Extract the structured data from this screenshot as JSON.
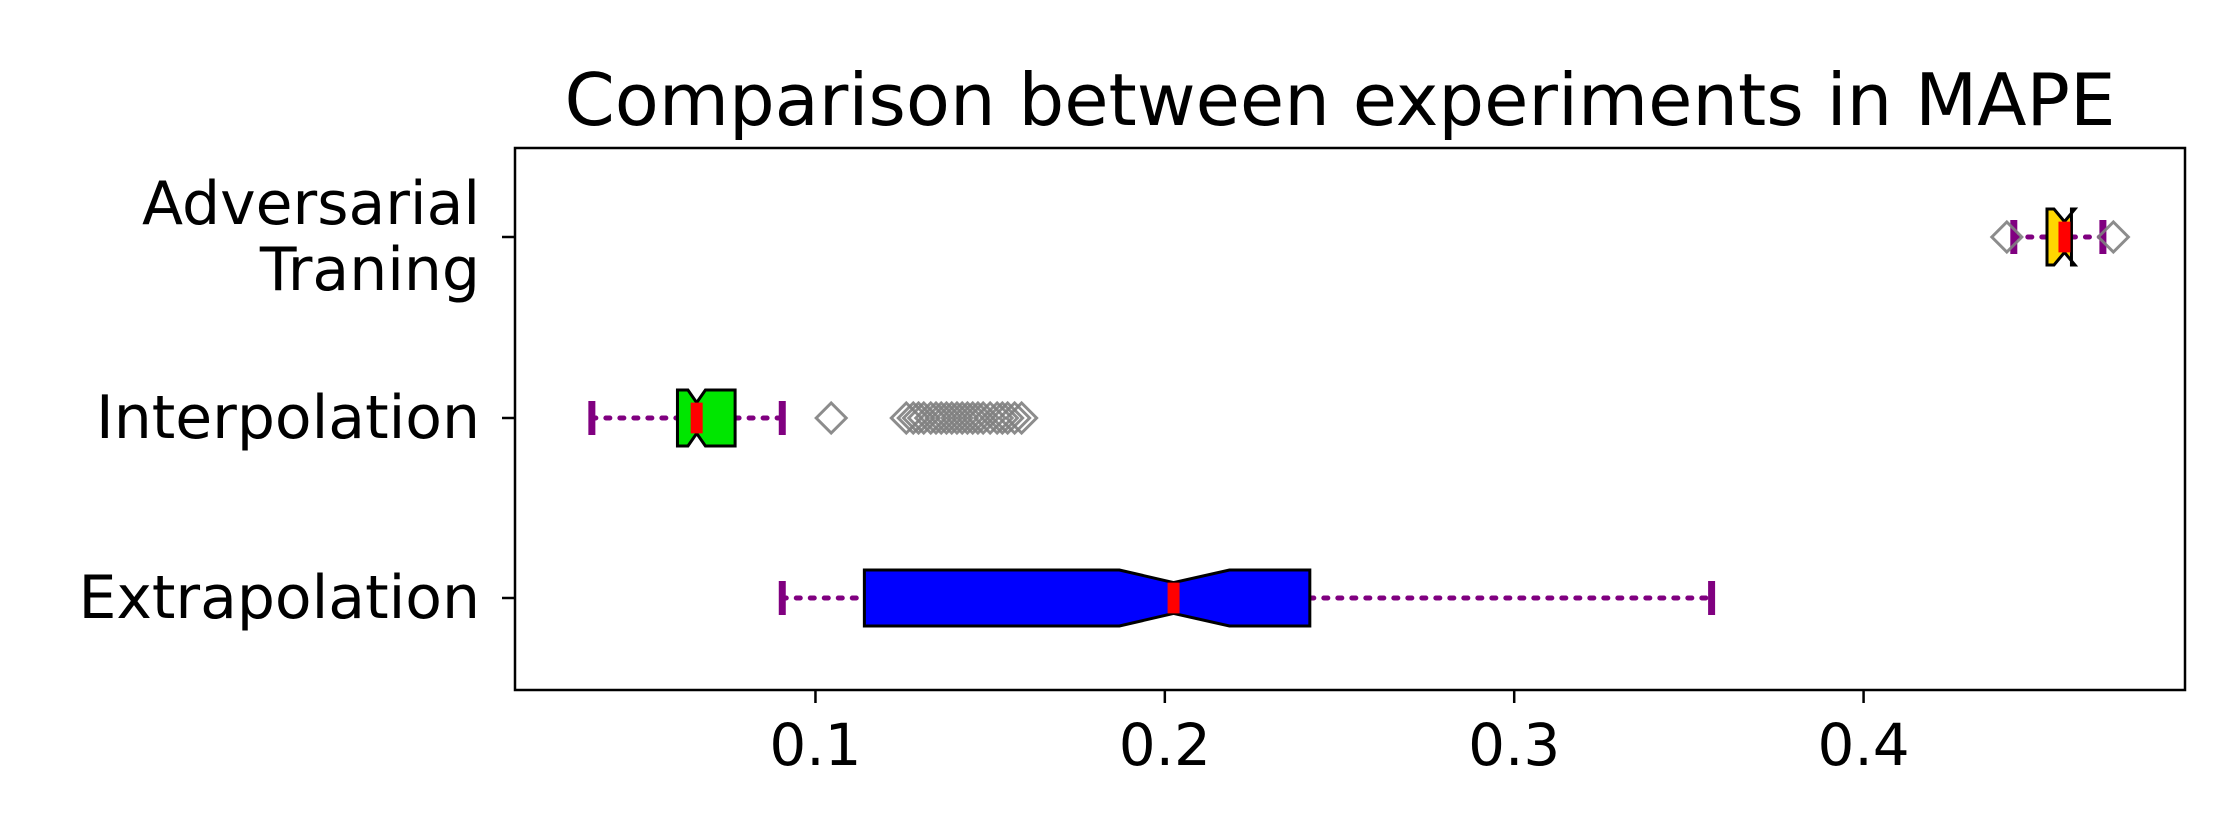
{
  "chart_data": {
    "type": "boxplot",
    "orientation": "horizontal",
    "title": "Comparison between experiments in MAPE",
    "xlabel": "",
    "ylabel": "",
    "xlim": [
      0.014,
      0.492
    ],
    "xticks": [
      0.1,
      0.2,
      0.3,
      0.4
    ],
    "xtick_labels": [
      "0.1",
      "0.2",
      "0.3",
      "0.4"
    ],
    "grid": false,
    "notched": true,
    "categories": [
      {
        "label_lines": [
          "Adversarial",
          "Traning"
        ]
      },
      {
        "label_lines": [
          "Interpolation"
        ]
      },
      {
        "label_lines": [
          "Extrapolation"
        ]
      }
    ],
    "boxes": [
      {
        "whisker_low": 0.443,
        "q1": 0.4525,
        "median": 0.4575,
        "q3": 0.4595,
        "whisker_high": 0.4685,
        "notch_low": 0.4545,
        "notch_high": 0.4605,
        "fill": "#ffd700",
        "outliers": [
          0.441,
          0.4715
        ]
      },
      {
        "whisker_low": 0.036,
        "q1": 0.0605,
        "median": 0.066,
        "q3": 0.077,
        "whisker_high": 0.0905,
        "notch_low": 0.0635,
        "notch_high": 0.0685,
        "fill": "#00e600",
        "outliers": [
          0.1045,
          0.126,
          0.128,
          0.1295,
          0.131,
          0.133,
          0.1345,
          0.136,
          0.1375,
          0.139,
          0.1405,
          0.142,
          0.1435,
          0.145,
          0.1465,
          0.148,
          0.15,
          0.152,
          0.1535,
          0.155,
          0.157,
          0.159
        ]
      },
      {
        "whisker_low": 0.0905,
        "q1": 0.114,
        "median": 0.2025,
        "q3": 0.2415,
        "whisker_high": 0.3565,
        "notch_low": 0.187,
        "notch_high": 0.2185,
        "fill": "#0000ff",
        "outliers": []
      }
    ],
    "colors": {
      "median": "#ff0000",
      "whisker": "#800080",
      "outlier": "#808080",
      "box_edge": "#000000"
    }
  }
}
